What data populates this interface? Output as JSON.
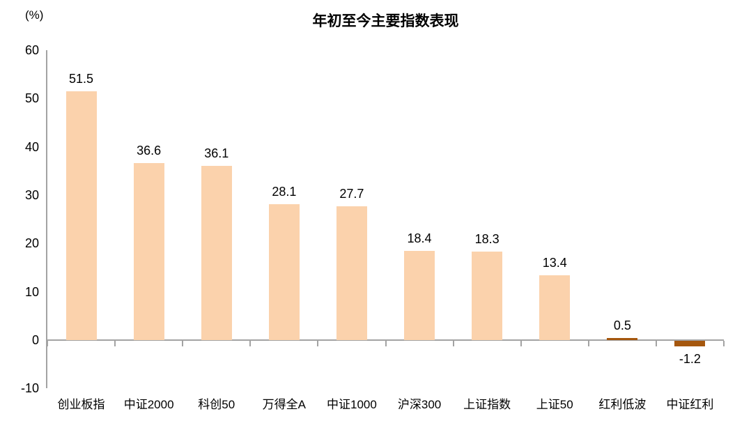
{
  "chart_data": {
    "type": "bar",
    "title": "年初至今主要指数表现",
    "unit_label": "(%)",
    "categories": [
      "创业板指",
      "中证2000",
      "科创50",
      "万得全A",
      "中证1000",
      "沪深300",
      "上证指数",
      "上证50",
      "红利低波",
      "中证红利"
    ],
    "values": [
      51.5,
      36.6,
      36.1,
      28.1,
      27.7,
      18.4,
      18.3,
      13.4,
      0.5,
      -1.2
    ],
    "data_labels": [
      "51.5",
      "36.6",
      "36.1",
      "28.1",
      "27.7",
      "18.4",
      "18.3",
      "13.4",
      "0.5",
      "-1.2"
    ],
    "yticks": [
      60,
      50,
      40,
      30,
      20,
      10,
      0,
      -10
    ],
    "ylim": [
      -10,
      60
    ],
    "grid": false,
    "legend_position": "none",
    "highlight_indices": [
      8,
      9
    ],
    "colors": {
      "bar_default": "#FBD2AC",
      "bar_highlight": "#A5570E",
      "axis": "#A3A3A3",
      "text": "#000000",
      "background": "#FFFFFF"
    }
  }
}
